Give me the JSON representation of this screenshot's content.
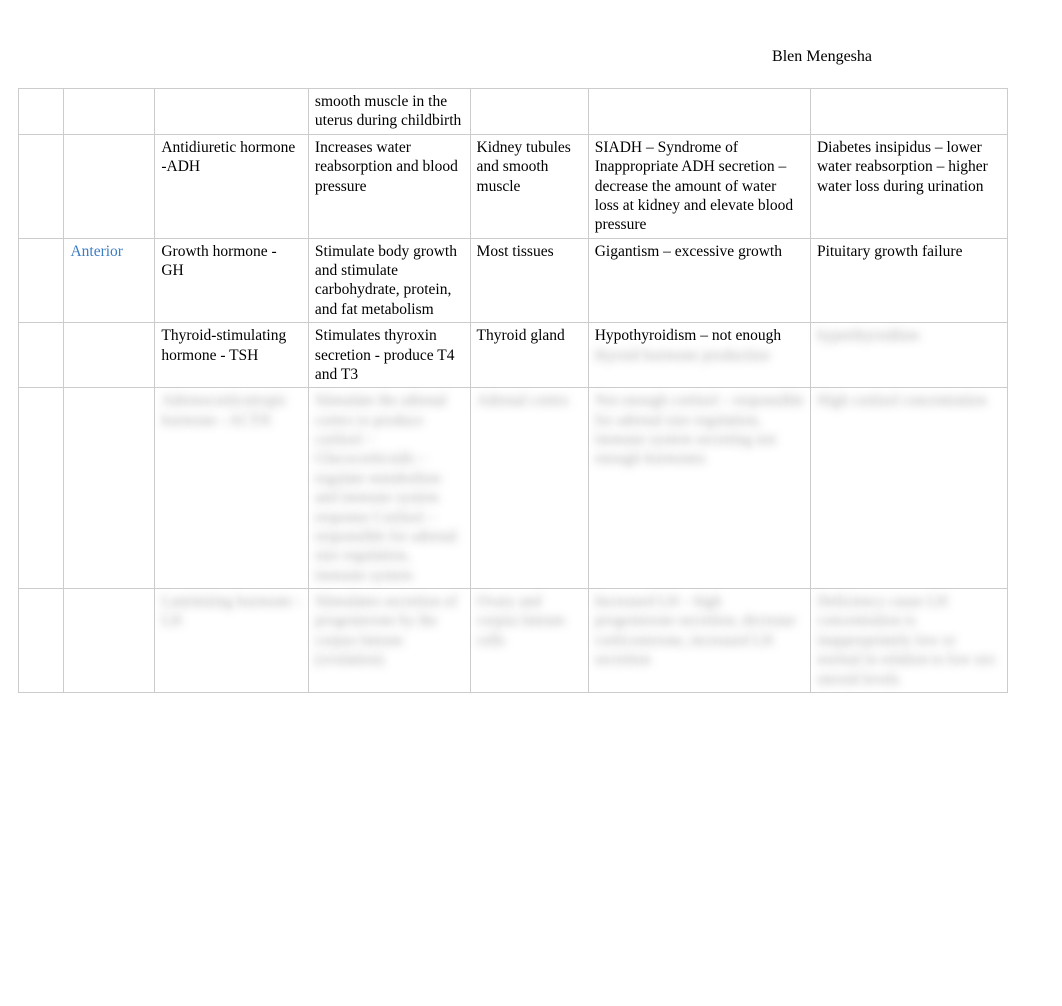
{
  "header": {
    "author": "Blen Mengesha"
  },
  "table": {
    "rows": [
      {
        "col0": "",
        "col1": "",
        "col2": "",
        "col3": "smooth muscle in the uterus during childbirth",
        "col4": "",
        "col5": "",
        "col6": ""
      },
      {
        "col0": "",
        "col1": "",
        "col2": "Antidiuretic hormone -ADH",
        "col3": "Increases water reabsorption and blood pressure",
        "col4": "Kidney tubules and smooth muscle",
        "col5": "SIADH – Syndrome of Inappropriate ADH secretion – decrease the amount of water loss at kidney and elevate blood pressure",
        "col6": "Diabetes insipidus – lower water reabsorption – higher water loss during urination"
      },
      {
        "col0": "",
        "col1": "Anterior",
        "col2": "Growth hormone - GH",
        "col3": "Stimulate body growth and stimulate carbohydrate, protein, and fat metabolism",
        "col4": "Most tissues",
        "col5": " Gigantism – excessive growth",
        "col6": "Pituitary growth failure",
        "col1_class": "anterior"
      },
      {
        "col0": "",
        "col1": "",
        "col2": "Thyroid-stimulating hormone - TSH",
        "col3": "Stimulates thyroxin secretion - produce T4 and T3",
        "col4": "Thyroid gland",
        "col5": "Hypothyroidism – not enough thyroid hormone production",
        "col6": "hyperthyroidism",
        "col5_blur_partial": "thyroid hormone production",
        "col6_class": "blurred"
      },
      {
        "col0": "",
        "col1": "",
        "col2": "Adrenocorticotropic hormone - ACTH",
        "col3": "Stimulate the adrenal cortex to produce cortisol – Glucocorticoids – regulate metabolism and immune system response Cortisol – responsible for adrenal size regulation, immune system",
        "col4": "Adrenal cortex",
        "col5": "Not enough cortisol – responsible for adrenal size regulation, immune system secreting not enough hormones",
        "col6": "High cortisol concentration",
        "row_class": "blurred"
      },
      {
        "col0": "",
        "col1": "",
        "col2": "Luteinizing hormone - LH",
        "col3": "Stimulates secretion of progesterone by the corpus luteum (ovulation)",
        "col4": "Ovary and corpus luteum cells",
        "col5": "Increased LH – high progesterone secretion, decrease corticosterone, increased LH secretion",
        "col6": "Deficiency cause LH concentration is inappropriately low or normal in relation to low sex steroid levels",
        "row_class": "blurred"
      }
    ]
  }
}
